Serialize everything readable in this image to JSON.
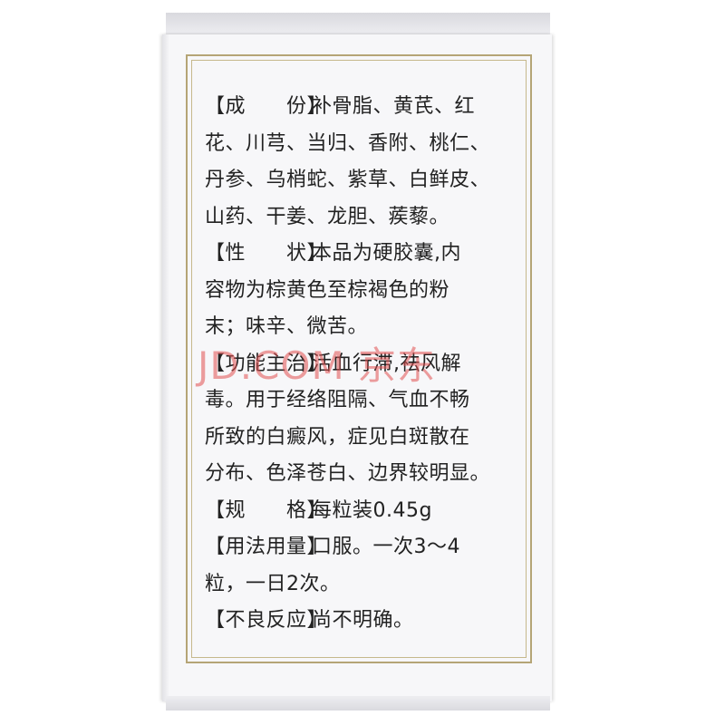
{
  "label": {
    "ingredients": {
      "heading": "【成　　份】",
      "lines": [
        "补骨脂、黄芪、红",
        "花、川芎、当归、香附、桃仁、",
        "丹参、乌梢蛇、紫草、白鲜皮、",
        "山药、干姜、龙胆、蒺藜。"
      ]
    },
    "character": {
      "heading": "【性　　状】",
      "lines": [
        "本品为硬胶囊,内",
        "容物为棕黄色至棕褐色的粉",
        "末；味辛、微苦。"
      ]
    },
    "indications": {
      "heading": "【功能主治】",
      "lines": [
        "活血行滞,祛风解",
        "毒。用于经络阻隔、气血不畅",
        "所致的白癜风，症见白斑散在",
        "分布、色泽苍白、边界较明显。"
      ]
    },
    "specification": {
      "heading": "【规　　格】",
      "lines": [
        "每粒装0.45g"
      ]
    },
    "dosage": {
      "heading": "【用法用量】",
      "lines": [
        "口服。一次3～4",
        "粒，一日2次。"
      ]
    },
    "adverse_reactions": {
      "heading": "【不良反应】",
      "lines": [
        "尚不明确。"
      ]
    }
  },
  "watermark": "JD.COM 京东",
  "colors": {
    "frame": "#b5a576",
    "text": "#222222",
    "watermark": "#e05050"
  }
}
